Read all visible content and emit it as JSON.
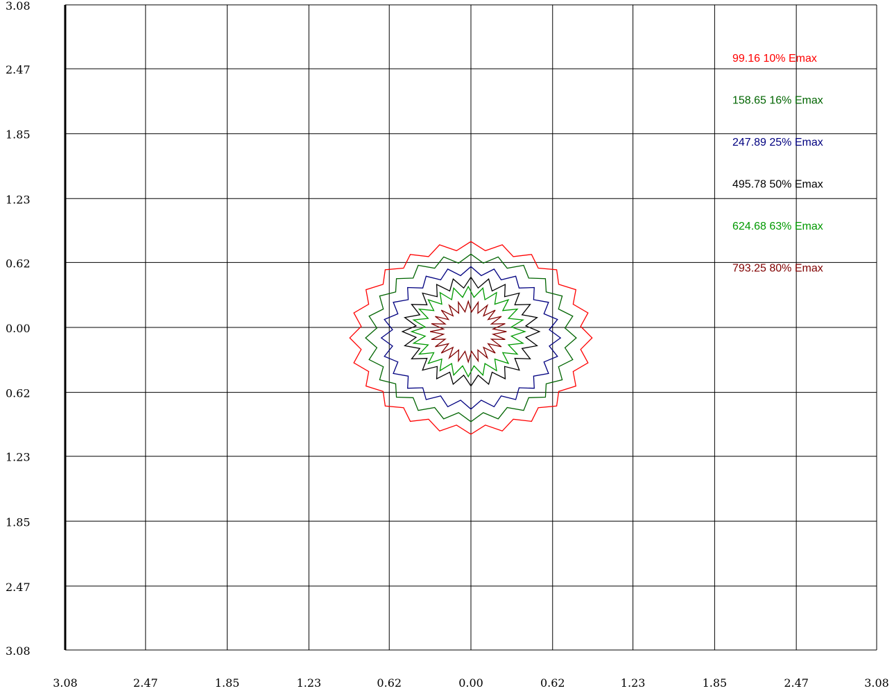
{
  "chart_data": {
    "type": "contour",
    "title": "",
    "xlabel": "",
    "ylabel": "",
    "xlim": [
      -3.08,
      3.08
    ],
    "ylim": [
      -3.08,
      3.08
    ],
    "grid": true,
    "x_ticks": [
      -3.08,
      -2.47,
      -1.85,
      -1.23,
      -0.62,
      0.0,
      0.62,
      1.23,
      1.85,
      2.47,
      3.08
    ],
    "y_ticks": [
      3.08,
      2.47,
      1.85,
      1.23,
      0.62,
      0.0,
      -0.62,
      -1.23,
      -1.85,
      -2.47,
      -3.08
    ],
    "x_tick_labels": [
      "3.08",
      "2.47",
      "1.85",
      "1.23",
      "0.62",
      "0.00",
      "0.62",
      "1.23",
      "1.85",
      "2.47",
      "3.08"
    ],
    "y_tick_labels": [
      "3.08",
      "2.47",
      "1.85",
      "1.23",
      "0.62",
      "0.00",
      "0.62",
      "1.23",
      "1.85",
      "2.47",
      "3.08"
    ],
    "legend_position": "top-right",
    "series": [
      {
        "name": "99.16 10% Emax",
        "value": 99.16,
        "percent": 10,
        "color": "#ff0000",
        "center": [
          0.0,
          -0.1
        ],
        "radius": 0.88,
        "jag": 0.04
      },
      {
        "name": "158.65 16% Emax",
        "value": 158.65,
        "percent": 16,
        "color": "#006400",
        "center": [
          0.0,
          -0.1
        ],
        "radius": 0.76,
        "jag": 0.04
      },
      {
        "name": "247.89 25% Emax",
        "value": 247.89,
        "percent": 25,
        "color": "#000080",
        "center": [
          0.0,
          -0.1
        ],
        "radius": 0.64,
        "jag": 0.04
      },
      {
        "name": "495.78 50% Emax",
        "value": 495.78,
        "percent": 50,
        "color": "#000000",
        "center": [
          0.0,
          -0.04
        ],
        "radius": 0.47,
        "jag": 0.05
      },
      {
        "name": "624.68 63% Emax",
        "value": 624.68,
        "percent": 63,
        "color": "#009900",
        "center": [
          -0.02,
          -0.04
        ],
        "radius": 0.38,
        "jag": 0.05
      },
      {
        "name": "793.25 80% Emax",
        "value": 793.25,
        "percent": 80,
        "color": "#800000",
        "center": [
          -0.02,
          -0.04
        ],
        "radius": 0.24,
        "jag": 0.05
      }
    ]
  }
}
